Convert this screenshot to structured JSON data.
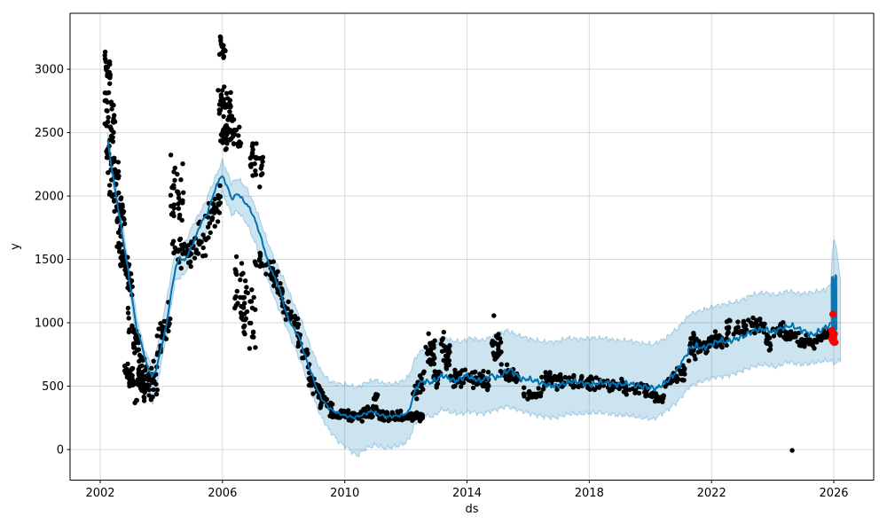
{
  "chart_data": {
    "type": "line",
    "layers": [
      "observations-scatter",
      "forecast-line",
      "uncertainty-band",
      "forecast-burst",
      "future-observations"
    ],
    "title": "",
    "xlabel": "ds",
    "ylabel": "y",
    "xlim": [
      2001.013,
      2027.306
    ],
    "ylim": [
      -241,
      3441
    ],
    "xticks": [
      2002,
      2006,
      2010,
      2014,
      2018,
      2022,
      2026
    ],
    "yticks": [
      0,
      500,
      1000,
      1500,
      2000,
      2500,
      3000
    ],
    "grid": true,
    "legend": false,
    "colors": {
      "observations": "#000000",
      "forecast_line": "#0072b2",
      "uncertainty_band": "rgba(0,114,178,0.2)",
      "uncertainty_band_edge": "rgba(0,114,178,0.28)",
      "future_observations": "#ff0000",
      "grid": "#d9d9d9",
      "axis": "#000000",
      "background": "#ffffff"
    },
    "forecast_line": {
      "wiggle_amp_early": 13,
      "wiggle_amp_late": 26,
      "wiggle_split_year": 2012.3,
      "keypoints": [
        [
          2002.25,
          2430
        ],
        [
          2002.4,
          2180
        ],
        [
          2002.55,
          1960
        ],
        [
          2002.7,
          1730
        ],
        [
          2002.9,
          1430
        ],
        [
          2003.05,
          1180
        ],
        [
          2003.2,
          940
        ],
        [
          2003.35,
          840
        ],
        [
          2003.5,
          680
        ],
        [
          2003.7,
          575
        ],
        [
          2003.85,
          645
        ],
        [
          2004.0,
          810
        ],
        [
          2004.15,
          960
        ],
        [
          2004.3,
          1200
        ],
        [
          2004.45,
          1420
        ],
        [
          2004.6,
          1520
        ],
        [
          2004.75,
          1485
        ],
        [
          2004.9,
          1555
        ],
        [
          2005.1,
          1660
        ],
        [
          2005.3,
          1790
        ],
        [
          2005.5,
          1860
        ],
        [
          2005.7,
          2010
        ],
        [
          2005.9,
          2140
        ],
        [
          2006.0,
          2155
        ],
        [
          2006.15,
          2080
        ],
        [
          2006.3,
          1975
        ],
        [
          2006.5,
          2020
        ],
        [
          2006.7,
          1960
        ],
        [
          2006.9,
          1900
        ],
        [
          2007.1,
          1790
        ],
        [
          2007.3,
          1640
        ],
        [
          2007.5,
          1470
        ],
        [
          2007.7,
          1360
        ],
        [
          2007.9,
          1240
        ],
        [
          2008.1,
          1060
        ],
        [
          2008.3,
          965
        ],
        [
          2008.5,
          890
        ],
        [
          2008.7,
          740
        ],
        [
          2008.9,
          610
        ],
        [
          2009.1,
          470
        ],
        [
          2009.3,
          380
        ],
        [
          2009.5,
          325
        ],
        [
          2009.7,
          295
        ],
        [
          2010.0,
          268
        ],
        [
          2010.3,
          252
        ],
        [
          2010.6,
          275
        ],
        [
          2010.9,
          305
        ],
        [
          2011.1,
          278
        ],
        [
          2011.4,
          258
        ],
        [
          2011.7,
          266
        ],
        [
          2011.9,
          272
        ],
        [
          2012.1,
          300
        ],
        [
          2012.25,
          430
        ],
        [
          2012.4,
          515
        ],
        [
          2012.6,
          540
        ],
        [
          2012.8,
          528
        ],
        [
          2013.0,
          552
        ],
        [
          2013.2,
          588
        ],
        [
          2013.4,
          560
        ],
        [
          2013.6,
          542
        ],
        [
          2013.8,
          558
        ],
        [
          2014.0,
          586
        ],
        [
          2014.2,
          562
        ],
        [
          2014.4,
          542
        ],
        [
          2014.6,
          558
        ],
        [
          2014.8,
          588
        ],
        [
          2015.0,
          562
        ],
        [
          2015.2,
          600
        ],
        [
          2015.4,
          632
        ],
        [
          2015.6,
          592
        ],
        [
          2015.8,
          552
        ],
        [
          2016.0,
          558
        ],
        [
          2016.3,
          538
        ],
        [
          2016.6,
          512
        ],
        [
          2016.9,
          500
        ],
        [
          2017.2,
          522
        ],
        [
          2017.5,
          540
        ],
        [
          2017.8,
          522
        ],
        [
          2018.1,
          512
        ],
        [
          2018.4,
          530
        ],
        [
          2018.7,
          520
        ],
        [
          2019.0,
          512
        ],
        [
          2019.3,
          522
        ],
        [
          2019.6,
          502
        ],
        [
          2019.9,
          492
        ],
        [
          2020.2,
          482
        ],
        [
          2020.5,
          530
        ],
        [
          2020.8,
          600
        ],
        [
          2021.1,
          718
        ],
        [
          2021.3,
          798
        ],
        [
          2021.5,
          818
        ],
        [
          2021.7,
          800
        ],
        [
          2021.9,
          820
        ],
        [
          2022.1,
          842
        ],
        [
          2022.3,
          862
        ],
        [
          2022.5,
          850
        ],
        [
          2022.8,
          872
        ],
        [
          2023.1,
          900
        ],
        [
          2023.4,
          942
        ],
        [
          2023.7,
          950
        ],
        [
          2024.0,
          928
        ],
        [
          2024.3,
          958
        ],
        [
          2024.6,
          978
        ],
        [
          2024.9,
          948
        ],
        [
          2025.1,
          928
        ],
        [
          2025.3,
          902
        ],
        [
          2025.5,
          930
        ],
        [
          2025.7,
          958
        ],
        [
          2025.88,
          985
        ]
      ]
    },
    "uncertainty_band": {
      "edge_wiggle_amp": 21,
      "keypoints": [
        [
          2002.25,
          2350,
          2500
        ],
        [
          2002.55,
          1880,
          2040
        ],
        [
          2002.9,
          1340,
          1520
        ],
        [
          2003.2,
          850,
          1040
        ],
        [
          2003.45,
          590,
          790
        ],
        [
          2003.7,
          360,
          650
        ],
        [
          2003.9,
          560,
          860
        ],
        [
          2004.15,
          870,
          1160
        ],
        [
          2004.45,
          1330,
          1560
        ],
        [
          2004.75,
          1380,
          1610
        ],
        [
          2005.0,
          1520,
          1760
        ],
        [
          2005.4,
          1680,
          1930
        ],
        [
          2005.7,
          1870,
          2110
        ],
        [
          2006.0,
          2030,
          2280
        ],
        [
          2006.3,
          1850,
          2100
        ],
        [
          2006.5,
          1880,
          2140
        ],
        [
          2006.8,
          1780,
          2060
        ],
        [
          2007.1,
          1610,
          1900
        ],
        [
          2007.4,
          1390,
          1690
        ],
        [
          2007.7,
          1190,
          1500
        ],
        [
          2008.0,
          1020,
          1350
        ],
        [
          2008.3,
          840,
          1170
        ],
        [
          2008.6,
          670,
          1010
        ],
        [
          2008.9,
          450,
          800
        ],
        [
          2009.2,
          270,
          630
        ],
        [
          2009.5,
          150,
          540
        ],
        [
          2009.8,
          60,
          520
        ],
        [
          2010.1,
          10,
          510
        ],
        [
          2010.4,
          -50,
          490
        ],
        [
          2010.7,
          10,
          530
        ],
        [
          2011.0,
          35,
          550
        ],
        [
          2011.3,
          10,
          520
        ],
        [
          2011.6,
          20,
          520
        ],
        [
          2011.9,
          40,
          540
        ],
        [
          2012.1,
          80,
          580
        ],
        [
          2012.3,
          200,
          720
        ],
        [
          2012.6,
          270,
          810
        ],
        [
          2012.9,
          260,
          810
        ],
        [
          2013.2,
          320,
          890
        ],
        [
          2013.5,
          290,
          860
        ],
        [
          2013.8,
          280,
          850
        ],
        [
          2014.1,
          300,
          880
        ],
        [
          2014.5,
          280,
          860
        ],
        [
          2014.9,
          310,
          900
        ],
        [
          2015.3,
          340,
          940
        ],
        [
          2015.7,
          310,
          900
        ],
        [
          2016.1,
          280,
          870
        ],
        [
          2016.5,
          260,
          850
        ],
        [
          2016.9,
          250,
          850
        ],
        [
          2017.3,
          280,
          880
        ],
        [
          2017.7,
          280,
          870
        ],
        [
          2018.1,
          290,
          880
        ],
        [
          2018.5,
          290,
          880
        ],
        [
          2018.9,
          270,
          860
        ],
        [
          2019.3,
          270,
          860
        ],
        [
          2019.7,
          250,
          840
        ],
        [
          2020.1,
          240,
          830
        ],
        [
          2020.5,
          300,
          880
        ],
        [
          2020.9,
          380,
          960
        ],
        [
          2021.3,
          500,
          1070
        ],
        [
          2021.7,
          540,
          1100
        ],
        [
          2022.1,
          570,
          1130
        ],
        [
          2022.5,
          580,
          1150
        ],
        [
          2022.9,
          610,
          1170
        ],
        [
          2023.3,
          650,
          1220
        ],
        [
          2023.7,
          670,
          1240
        ],
        [
          2024.1,
          650,
          1220
        ],
        [
          2024.5,
          690,
          1250
        ],
        [
          2024.9,
          670,
          1230
        ],
        [
          2025.3,
          680,
          1240
        ],
        [
          2025.7,
          700,
          1260
        ],
        [
          2025.9,
          700,
          1300
        ],
        [
          2025.95,
          690,
          1580
        ],
        [
          2026.0,
          680,
          1645
        ],
        [
          2026.08,
          685,
          1600
        ],
        [
          2026.15,
          695,
          1480
        ],
        [
          2026.22,
          705,
          1340
        ]
      ]
    },
    "observations": {
      "marker_radius": 2.7,
      "segments": [
        [
          2002.15,
          2002.33,
          3050,
          2980,
          120,
          22
        ],
        [
          2002.15,
          2002.5,
          2700,
          2520,
          190,
          30
        ],
        [
          2002.2,
          2002.62,
          2350,
          2150,
          160,
          30
        ],
        [
          2002.3,
          2002.8,
          2050,
          1800,
          170,
          35
        ],
        [
          2002.55,
          2003.05,
          1650,
          1280,
          180,
          40
        ],
        [
          2002.75,
          2003.0,
          620,
          560,
          140,
          12
        ],
        [
          2002.9,
          2003.3,
          1050,
          780,
          160,
          30
        ],
        [
          2002.95,
          2003.6,
          540,
          500,
          170,
          55
        ],
        [
          2003.25,
          2003.9,
          580,
          540,
          190,
          40
        ],
        [
          2003.85,
          2004.3,
          780,
          1060,
          180,
          28
        ],
        [
          2004.3,
          2004.75,
          2050,
          1950,
          300,
          30
        ],
        [
          2004.35,
          2004.95,
          1580,
          1540,
          140,
          28
        ],
        [
          2004.95,
          2005.5,
          1580,
          1700,
          170,
          32
        ],
        [
          2005.5,
          2005.95,
          1800,
          1980,
          170,
          30
        ],
        [
          2005.9,
          2006.1,
          3200,
          3150,
          110,
          16
        ],
        [
          2005.85,
          2006.35,
          2740,
          2700,
          150,
          40
        ],
        [
          2005.9,
          2006.2,
          2460,
          2500,
          140,
          18
        ],
        [
          2006.1,
          2006.6,
          2520,
          2420,
          180,
          30
        ],
        [
          2006.9,
          2007.35,
          2300,
          2220,
          260,
          26
        ],
        [
          2006.4,
          2006.8,
          1250,
          1150,
          300,
          30
        ],
        [
          2006.6,
          2007.1,
          1100,
          1000,
          280,
          24
        ],
        [
          2007.05,
          2007.7,
          1480,
          1420,
          110,
          26
        ],
        [
          2007.6,
          2008.0,
          1350,
          1270,
          110,
          20
        ],
        [
          2007.95,
          2008.5,
          1130,
          980,
          120,
          26
        ],
        [
          2008.45,
          2008.85,
          870,
          740,
          110,
          20
        ],
        [
          2008.8,
          2009.3,
          560,
          420,
          110,
          22
        ],
        [
          2009.2,
          2009.6,
          380,
          320,
          70,
          18
        ],
        [
          2009.5,
          2010.6,
          275,
          260,
          50,
          70
        ],
        [
          2010.6,
          2011.1,
          290,
          300,
          55,
          30
        ],
        [
          2010.95,
          2011.12,
          410,
          400,
          40,
          6
        ],
        [
          2011.1,
          2012.55,
          265,
          265,
          45,
          80
        ],
        [
          2012.2,
          2012.6,
          420,
          540,
          120,
          24
        ],
        [
          2012.65,
          2012.95,
          780,
          760,
          170,
          26
        ],
        [
          2012.9,
          2013.15,
          560,
          570,
          90,
          16
        ],
        [
          2013.15,
          2013.45,
          780,
          760,
          170,
          26
        ],
        [
          2013.45,
          2014.75,
          560,
          545,
          90,
          70
        ],
        [
          2014.78,
          2015.12,
          790,
          800,
          150,
          22
        ],
        [
          2015.05,
          2015.7,
          650,
          560,
          90,
          26
        ],
        [
          2015.85,
          2016.45,
          445,
          430,
          60,
          26
        ],
        [
          2016.4,
          2017.5,
          540,
          545,
          80,
          45
        ],
        [
          2017.5,
          2019.1,
          530,
          510,
          65,
          60
        ],
        [
          2019.05,
          2020.0,
          490,
          470,
          65,
          35
        ],
        [
          2020.0,
          2020.45,
          430,
          395,
          60,
          20
        ],
        [
          2020.45,
          2021.15,
          540,
          610,
          90,
          30
        ],
        [
          2021.25,
          2021.6,
          800,
          810,
          130,
          24
        ],
        [
          2021.55,
          2021.95,
          830,
          820,
          70,
          22
        ],
        [
          2021.95,
          2022.5,
          865,
          860,
          75,
          28
        ],
        [
          2022.5,
          2023.15,
          960,
          965,
          75,
          30
        ],
        [
          2023.15,
          2023.75,
          985,
          975,
          65,
          30
        ],
        [
          2023.78,
          2023.97,
          870,
          800,
          90,
          14
        ],
        [
          2024.0,
          2024.35,
          945,
          950,
          60,
          20
        ],
        [
          2024.35,
          2024.85,
          905,
          880,
          60,
          24
        ],
        [
          2024.85,
          2025.45,
          855,
          845,
          55,
          28
        ],
        [
          2025.45,
          2025.9,
          890,
          900,
          55,
          24
        ]
      ]
    },
    "isolated_points": [
      [
        2014.88,
        1056
      ],
      [
        2024.64,
        -7
      ]
    ],
    "future_observations": {
      "marker_radius": 4,
      "points": [
        [
          2025.97,
          1068
        ],
        [
          2025.94,
          940
        ],
        [
          2025.96,
          908
        ],
        [
          2025.93,
          872
        ],
        [
          2025.98,
          852
        ],
        [
          2026.0,
          882
        ],
        [
          2026.02,
          912
        ],
        [
          2026.04,
          846
        ]
      ]
    },
    "forecast_burst": [
      {
        "x0": 2025.93,
        "x1": 2026.09,
        "ymin": 935,
        "ymax": 1378
      },
      {
        "x0": 2025.95,
        "x1": 2026.05,
        "ymin": 820,
        "ymax": 985
      }
    ]
  }
}
